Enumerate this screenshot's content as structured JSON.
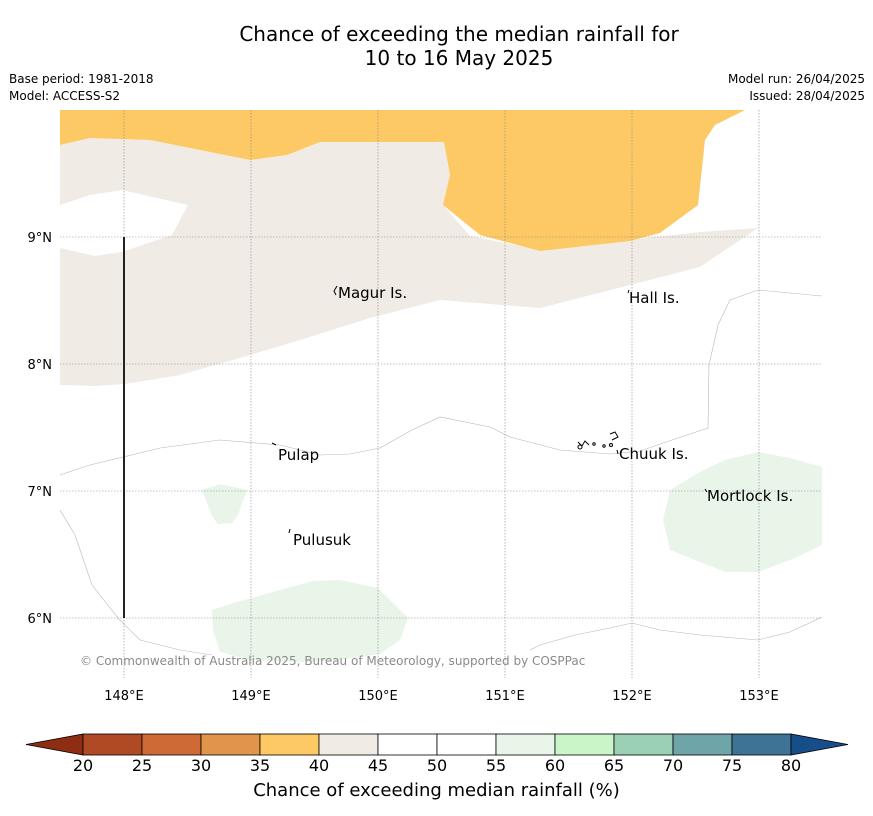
{
  "title_line1": "Chance of exceeding the median rainfall for",
  "title_line2": "10 to 16 May 2025",
  "base_period": "Base period: 1981-2018",
  "model": "Model: ACCESS-S2",
  "model_run": "Model run: 26/04/2025",
  "issued": "Issued: 28/04/2025",
  "copyright": "© Commonwealth of Australia 2025, Bureau of Meteorology, supported by COSPPac",
  "map": {
    "lon_ticks": [
      "148°E",
      "149°E",
      "150°E",
      "151°E",
      "152°E",
      "153°E"
    ],
    "lat_ticks": [
      "9°N",
      "8°N",
      "7°N",
      "6°N"
    ],
    "places": [
      {
        "name": "Magur Is."
      },
      {
        "name": "Hall Is."
      },
      {
        "name": "Pulap"
      },
      {
        "name": "Chuuk Is."
      },
      {
        "name": "Mortlock Is."
      },
      {
        "name": "Pulusuk"
      }
    ]
  },
  "colorbar": {
    "title": "Chance of exceeding median rainfall (%)",
    "tick_labels": [
      "20",
      "25",
      "30",
      "35",
      "40",
      "45",
      "50",
      "55",
      "60",
      "65",
      "70",
      "75",
      "80"
    ],
    "colors": {
      "below_20": "#8e2d14",
      "20-25": "#b04a25",
      "25-30": "#cd6a35",
      "30-35": "#e0954b",
      "35-40": "#fdc965",
      "40-45": "#f0ebe4",
      "45-50": "#ffffff",
      "50-55": "#ffffff",
      "55-60": "#e9f5e9",
      "60-65": "#c9f5c9",
      "65-70": "#9bd0b5",
      "70-75": "#6ea5a8",
      "75-80": "#3f7396",
      "above_80": "#174e8a"
    }
  }
}
